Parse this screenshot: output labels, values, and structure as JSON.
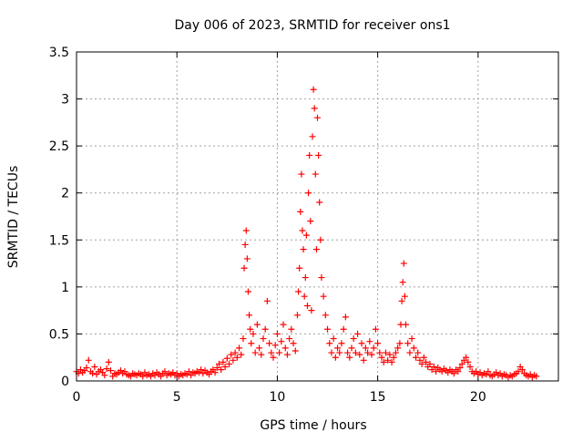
{
  "chart_data": {
    "type": "scatter",
    "title": "Day 006 of 2023, SRMTID for receiver ons1",
    "xlabel": "GPS time / hours",
    "ylabel": "SRMTID / TECUs",
    "xlim": [
      0,
      24
    ],
    "ylim": [
      0,
      3.5
    ],
    "x_ticks": [
      0,
      5,
      10,
      15,
      20
    ],
    "x_tick_labels": [
      "0",
      "5",
      "10",
      "15",
      "20"
    ],
    "y_ticks": [
      0,
      0.5,
      1,
      1.5,
      2,
      2.5,
      3,
      3.5
    ],
    "y_tick_labels": [
      "0",
      "0.5",
      "1",
      "1.5",
      "2",
      "2.5",
      "3",
      "3.5"
    ],
    "grid": true,
    "marker": "+",
    "series": [
      {
        "name": "SRMTID",
        "color": "#ff0000",
        "points": [
          [
            0.0,
            0.1
          ],
          [
            0.1,
            0.08
          ],
          [
            0.2,
            0.12
          ],
          [
            0.3,
            0.09
          ],
          [
            0.4,
            0.11
          ],
          [
            0.5,
            0.14
          ],
          [
            0.6,
            0.22
          ],
          [
            0.7,
            0.1
          ],
          [
            0.8,
            0.08
          ],
          [
            0.9,
            0.15
          ],
          [
            1.0,
            0.07
          ],
          [
            1.1,
            0.1
          ],
          [
            1.2,
            0.12
          ],
          [
            1.3,
            0.09
          ],
          [
            1.4,
            0.06
          ],
          [
            1.5,
            0.13
          ],
          [
            1.6,
            0.2
          ],
          [
            1.7,
            0.11
          ],
          [
            1.8,
            0.05
          ],
          [
            1.9,
            0.08
          ],
          [
            2.0,
            0.07
          ],
          [
            2.1,
            0.09
          ],
          [
            2.2,
            0.11
          ],
          [
            2.3,
            0.08
          ],
          [
            2.4,
            0.1
          ],
          [
            2.5,
            0.07
          ],
          [
            2.6,
            0.06
          ],
          [
            2.7,
            0.05
          ],
          [
            2.8,
            0.08
          ],
          [
            2.9,
            0.07
          ],
          [
            3.0,
            0.06
          ],
          [
            3.1,
            0.08
          ],
          [
            3.2,
            0.07
          ],
          [
            3.3,
            0.05
          ],
          [
            3.4,
            0.09
          ],
          [
            3.5,
            0.06
          ],
          [
            3.6,
            0.07
          ],
          [
            3.7,
            0.05
          ],
          [
            3.8,
            0.08
          ],
          [
            3.9,
            0.06
          ],
          [
            4.0,
            0.09
          ],
          [
            4.1,
            0.07
          ],
          [
            4.2,
            0.05
          ],
          [
            4.3,
            0.08
          ],
          [
            4.4,
            0.1
          ],
          [
            4.5,
            0.06
          ],
          [
            4.6,
            0.08
          ],
          [
            4.7,
            0.07
          ],
          [
            4.8,
            0.09
          ],
          [
            4.9,
            0.06
          ],
          [
            5.0,
            0.08
          ],
          [
            5.1,
            0.05
          ],
          [
            5.2,
            0.07
          ],
          [
            5.3,
            0.06
          ],
          [
            5.4,
            0.08
          ],
          [
            5.5,
            0.07
          ],
          [
            5.6,
            0.1
          ],
          [
            5.7,
            0.06
          ],
          [
            5.8,
            0.09
          ],
          [
            5.9,
            0.08
          ],
          [
            6.0,
            0.1
          ],
          [
            6.1,
            0.09
          ],
          [
            6.2,
            0.12
          ],
          [
            6.3,
            0.08
          ],
          [
            6.4,
            0.11
          ],
          [
            6.5,
            0.09
          ],
          [
            6.6,
            0.07
          ],
          [
            6.7,
            0.1
          ],
          [
            6.8,
            0.12
          ],
          [
            6.9,
            0.09
          ],
          [
            7.0,
            0.14
          ],
          [
            7.1,
            0.18
          ],
          [
            7.2,
            0.12
          ],
          [
            7.3,
            0.2
          ],
          [
            7.4,
            0.15
          ],
          [
            7.5,
            0.24
          ],
          [
            7.6,
            0.18
          ],
          [
            7.7,
            0.28
          ],
          [
            7.8,
            0.22
          ],
          [
            7.9,
            0.3
          ],
          [
            8.0,
            0.25
          ],
          [
            8.1,
            0.35
          ],
          [
            8.2,
            0.28
          ],
          [
            8.3,
            0.45
          ],
          [
            8.35,
            1.2
          ],
          [
            8.4,
            1.45
          ],
          [
            8.45,
            1.6
          ],
          [
            8.5,
            1.3
          ],
          [
            8.55,
            0.95
          ],
          [
            8.6,
            0.7
          ],
          [
            8.65,
            0.55
          ],
          [
            8.7,
            0.4
          ],
          [
            8.8,
            0.5
          ],
          [
            8.9,
            0.3
          ],
          [
            9.0,
            0.6
          ],
          [
            9.1,
            0.35
          ],
          [
            9.2,
            0.28
          ],
          [
            9.3,
            0.45
          ],
          [
            9.4,
            0.55
          ],
          [
            9.5,
            0.85
          ],
          [
            9.6,
            0.4
          ],
          [
            9.7,
            0.3
          ],
          [
            9.8,
            0.25
          ],
          [
            9.9,
            0.38
          ],
          [
            10.0,
            0.5
          ],
          [
            10.1,
            0.3
          ],
          [
            10.2,
            0.42
          ],
          [
            10.3,
            0.6
          ],
          [
            10.4,
            0.35
          ],
          [
            10.5,
            0.28
          ],
          [
            10.6,
            0.45
          ],
          [
            10.7,
            0.55
          ],
          [
            10.8,
            0.4
          ],
          [
            10.9,
            0.32
          ],
          [
            11.0,
            0.7
          ],
          [
            11.05,
            0.95
          ],
          [
            11.1,
            1.2
          ],
          [
            11.15,
            1.8
          ],
          [
            11.2,
            2.2
          ],
          [
            11.25,
            1.6
          ],
          [
            11.3,
            1.4
          ],
          [
            11.35,
            0.9
          ],
          [
            11.4,
            1.1
          ],
          [
            11.45,
            1.55
          ],
          [
            11.5,
            0.8
          ],
          [
            11.55,
            2.0
          ],
          [
            11.6,
            2.4
          ],
          [
            11.65,
            1.7
          ],
          [
            11.7,
            0.75
          ],
          [
            11.75,
            2.6
          ],
          [
            11.8,
            3.1
          ],
          [
            11.85,
            2.9
          ],
          [
            11.9,
            2.2
          ],
          [
            11.95,
            1.4
          ],
          [
            12.0,
            2.8
          ],
          [
            12.05,
            2.4
          ],
          [
            12.1,
            1.9
          ],
          [
            12.15,
            1.5
          ],
          [
            12.2,
            1.1
          ],
          [
            12.3,
            0.9
          ],
          [
            12.4,
            0.7
          ],
          [
            12.5,
            0.55
          ],
          [
            12.6,
            0.4
          ],
          [
            12.7,
            0.3
          ],
          [
            12.8,
            0.45
          ],
          [
            12.9,
            0.25
          ],
          [
            13.0,
            0.35
          ],
          [
            13.1,
            0.3
          ],
          [
            13.2,
            0.4
          ],
          [
            13.3,
            0.55
          ],
          [
            13.4,
            0.68
          ],
          [
            13.5,
            0.3
          ],
          [
            13.6,
            0.25
          ],
          [
            13.7,
            0.35
          ],
          [
            13.8,
            0.45
          ],
          [
            13.9,
            0.3
          ],
          [
            14.0,
            0.5
          ],
          [
            14.1,
            0.28
          ],
          [
            14.2,
            0.4
          ],
          [
            14.3,
            0.22
          ],
          [
            14.4,
            0.35
          ],
          [
            14.5,
            0.3
          ],
          [
            14.6,
            0.42
          ],
          [
            14.7,
            0.28
          ],
          [
            14.8,
            0.35
          ],
          [
            14.9,
            0.55
          ],
          [
            15.0,
            0.4
          ],
          [
            15.1,
            0.3
          ],
          [
            15.2,
            0.25
          ],
          [
            15.3,
            0.2
          ],
          [
            15.4,
            0.3
          ],
          [
            15.5,
            0.22
          ],
          [
            15.6,
            0.28
          ],
          [
            15.7,
            0.2
          ],
          [
            15.8,
            0.25
          ],
          [
            15.9,
            0.3
          ],
          [
            16.0,
            0.35
          ],
          [
            16.1,
            0.4
          ],
          [
            16.15,
            0.6
          ],
          [
            16.2,
            0.85
          ],
          [
            16.25,
            1.05
          ],
          [
            16.3,
            1.25
          ],
          [
            16.35,
            0.9
          ],
          [
            16.4,
            0.6
          ],
          [
            16.5,
            0.4
          ],
          [
            16.6,
            0.3
          ],
          [
            16.7,
            0.45
          ],
          [
            16.8,
            0.35
          ],
          [
            16.9,
            0.25
          ],
          [
            17.0,
            0.3
          ],
          [
            17.1,
            0.22
          ],
          [
            17.2,
            0.18
          ],
          [
            17.3,
            0.25
          ],
          [
            17.4,
            0.2
          ],
          [
            17.5,
            0.15
          ],
          [
            17.6,
            0.18
          ],
          [
            17.7,
            0.12
          ],
          [
            17.8,
            0.15
          ],
          [
            17.9,
            0.1
          ],
          [
            18.0,
            0.14
          ],
          [
            18.1,
            0.12
          ],
          [
            18.2,
            0.1
          ],
          [
            18.3,
            0.13
          ],
          [
            18.4,
            0.11
          ],
          [
            18.5,
            0.09
          ],
          [
            18.6,
            0.12
          ],
          [
            18.7,
            0.1
          ],
          [
            18.8,
            0.08
          ],
          [
            18.9,
            0.12
          ],
          [
            19.0,
            0.1
          ],
          [
            19.1,
            0.14
          ],
          [
            19.2,
            0.18
          ],
          [
            19.3,
            0.22
          ],
          [
            19.4,
            0.25
          ],
          [
            19.5,
            0.2
          ],
          [
            19.6,
            0.15
          ],
          [
            19.7,
            0.1
          ],
          [
            19.8,
            0.08
          ],
          [
            19.9,
            0.1
          ],
          [
            20.0,
            0.07
          ],
          [
            20.1,
            0.09
          ],
          [
            20.2,
            0.06
          ],
          [
            20.3,
            0.08
          ],
          [
            20.4,
            0.07
          ],
          [
            20.5,
            0.1
          ],
          [
            20.6,
            0.06
          ],
          [
            20.7,
            0.05
          ],
          [
            20.8,
            0.07
          ],
          [
            20.9,
            0.09
          ],
          [
            21.0,
            0.06
          ],
          [
            21.1,
            0.08
          ],
          [
            21.2,
            0.05
          ],
          [
            21.3,
            0.07
          ],
          [
            21.4,
            0.06
          ],
          [
            21.5,
            0.04
          ],
          [
            21.6,
            0.06
          ],
          [
            21.7,
            0.05
          ],
          [
            21.8,
            0.07
          ],
          [
            21.9,
            0.08
          ],
          [
            22.0,
            0.1
          ],
          [
            22.1,
            0.15
          ],
          [
            22.2,
            0.12
          ],
          [
            22.3,
            0.08
          ],
          [
            22.4,
            0.06
          ],
          [
            22.5,
            0.05
          ],
          [
            22.6,
            0.07
          ],
          [
            22.7,
            0.04
          ],
          [
            22.8,
            0.06
          ],
          [
            22.9,
            0.05
          ]
        ]
      }
    ]
  }
}
